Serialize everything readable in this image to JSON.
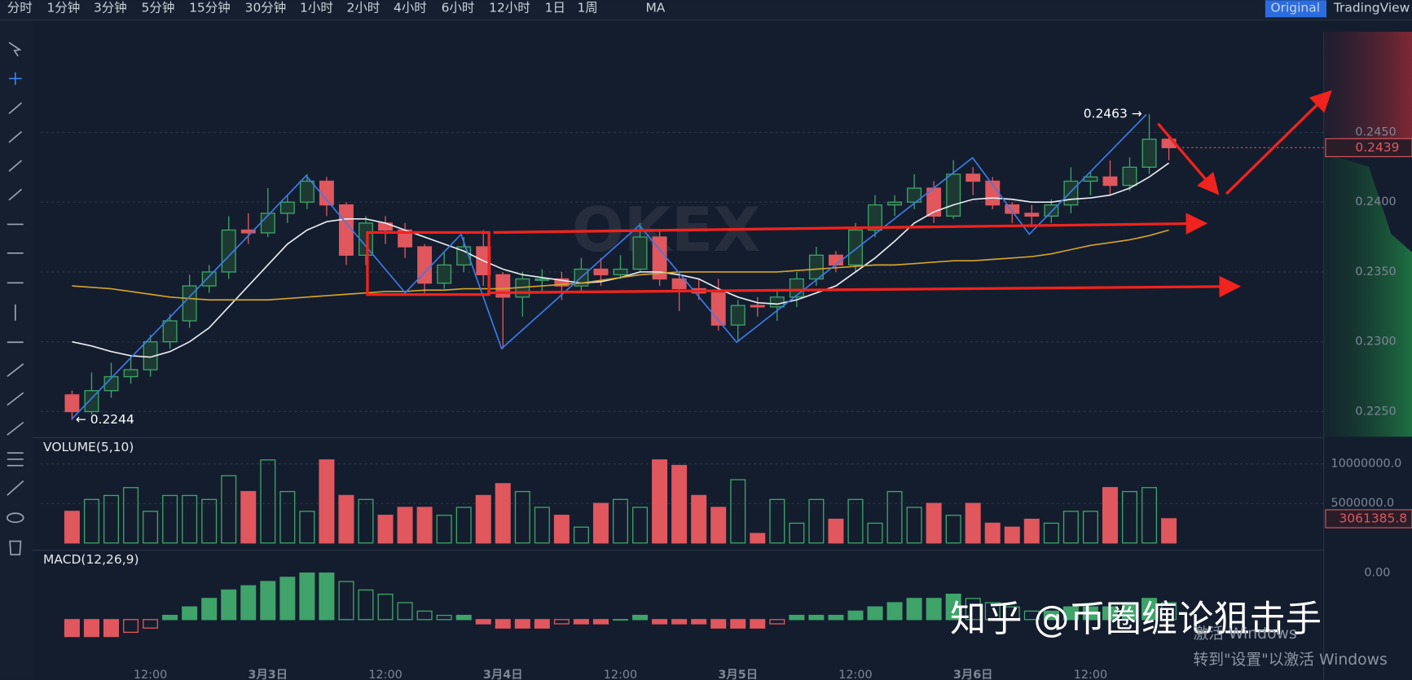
{
  "toolbar": {
    "timeframes": [
      "分时",
      "1分钟",
      "3分钟",
      "5分钟",
      "15分钟",
      "30分钟",
      "1小时",
      "2小时",
      "4小时",
      "6小时",
      "12小时",
      "1日",
      "1周"
    ],
    "active": 7,
    "indicator": "MA",
    "views": [
      "Original",
      "TradingView"
    ]
  },
  "watermarks": {
    "brand": "OKEX",
    "author": "知乎 @币圈缠论狙击手",
    "os_1": "激活 Windows",
    "os_2": "转到\"设置\"以激活 Windows"
  },
  "chart_data": [
    {
      "type": "candlestick",
      "up_color": "#3fa36a",
      "down_color": "#e0575e",
      "open": [
        0.2262,
        0.225,
        0.2265,
        0.2275,
        0.228,
        0.23,
        0.2315,
        0.234,
        0.235,
        0.238,
        0.2378,
        0.2392,
        0.24,
        0.2415,
        0.2398,
        0.2362,
        0.2385,
        0.238,
        0.2368,
        0.2342,
        0.2355,
        0.2368,
        0.2348,
        0.2332,
        0.2345,
        0.2345,
        0.234,
        0.2352,
        0.2348,
        0.2352,
        0.2375,
        0.2345,
        0.2338,
        0.2335,
        0.2312,
        0.2326,
        0.2325,
        0.2332,
        0.2345,
        0.2362,
        0.2355,
        0.238,
        0.2398,
        0.24,
        0.241,
        0.239,
        0.242,
        0.2415,
        0.2398,
        0.2392,
        0.239,
        0.2398,
        0.2415,
        0.2418,
        0.2412,
        0.2425,
        0.2445
      ],
      "high": [
        0.2265,
        0.2278,
        0.2285,
        0.229,
        0.2305,
        0.232,
        0.2348,
        0.2355,
        0.239,
        0.2392,
        0.241,
        0.2405,
        0.242,
        0.2418,
        0.24,
        0.239,
        0.239,
        0.2385,
        0.237,
        0.2365,
        0.2375,
        0.238,
        0.235,
        0.235,
        0.2352,
        0.235,
        0.236,
        0.236,
        0.2362,
        0.2385,
        0.238,
        0.235,
        0.2345,
        0.2345,
        0.233,
        0.2332,
        0.2338,
        0.235,
        0.2368,
        0.2365,
        0.2385,
        0.2405,
        0.2405,
        0.242,
        0.2415,
        0.243,
        0.2425,
        0.2418,
        0.24,
        0.2398,
        0.2402,
        0.2425,
        0.2422,
        0.243,
        0.2432,
        0.2463,
        0.2448
      ],
      "low": [
        0.2244,
        0.2248,
        0.226,
        0.227,
        0.2275,
        0.2295,
        0.231,
        0.2335,
        0.2345,
        0.237,
        0.2375,
        0.2385,
        0.2395,
        0.239,
        0.2355,
        0.2355,
        0.237,
        0.236,
        0.2335,
        0.2338,
        0.235,
        0.234,
        0.2295,
        0.2318,
        0.2335,
        0.233,
        0.2335,
        0.234,
        0.2345,
        0.235,
        0.234,
        0.2322,
        0.233,
        0.2308,
        0.23,
        0.2318,
        0.2315,
        0.2325,
        0.234,
        0.235,
        0.235,
        0.2375,
        0.239,
        0.2395,
        0.2385,
        0.2388,
        0.2405,
        0.2395,
        0.2385,
        0.2382,
        0.2385,
        0.2392,
        0.2405,
        0.2405,
        0.2408,
        0.242,
        0.243
      ],
      "close": [
        0.225,
        0.2265,
        0.2275,
        0.228,
        0.23,
        0.2315,
        0.234,
        0.235,
        0.238,
        0.2378,
        0.2392,
        0.24,
        0.2415,
        0.2398,
        0.2362,
        0.2385,
        0.238,
        0.2368,
        0.2342,
        0.2355,
        0.2368,
        0.2348,
        0.2332,
        0.2345,
        0.2345,
        0.234,
        0.2352,
        0.2348,
        0.2352,
        0.2375,
        0.2345,
        0.2338,
        0.2335,
        0.2312,
        0.2326,
        0.2325,
        0.2332,
        0.2345,
        0.2362,
        0.2355,
        0.238,
        0.2398,
        0.24,
        0.241,
        0.239,
        0.242,
        0.2415,
        0.2398,
        0.2392,
        0.239,
        0.2398,
        0.2415,
        0.2418,
        0.2412,
        0.2425,
        0.2445,
        0.2439
      ],
      "series": [
        {
          "color": "#e8ecf2",
          "values": [
            0.23,
            0.2297,
            0.2293,
            0.229,
            0.2289,
            0.2293,
            0.23,
            0.231,
            0.2325,
            0.234,
            0.2355,
            0.237,
            0.238,
            0.2386,
            0.2388,
            0.2388,
            0.2385,
            0.238,
            0.2375,
            0.237,
            0.2365,
            0.2358,
            0.2352,
            0.2348,
            0.2346,
            0.2344,
            0.2342,
            0.2343,
            0.2346,
            0.235,
            0.235,
            0.2348,
            0.2345,
            0.2338,
            0.2332,
            0.2328,
            0.2327,
            0.233,
            0.2335,
            0.234,
            0.235,
            0.236,
            0.2372,
            0.2385,
            0.2393,
            0.2398,
            0.2402,
            0.2403,
            0.2402,
            0.24,
            0.24,
            0.2402,
            0.2403,
            0.2405,
            0.241,
            0.2418,
            0.2428
          ]
        },
        {
          "color": "#d4a32c",
          "values": [
            0.234,
            0.2339,
            0.2338,
            0.2336,
            0.2334,
            0.2332,
            0.2331,
            0.233,
            0.233,
            0.233,
            0.233,
            0.2331,
            0.2332,
            0.2333,
            0.2334,
            0.2335,
            0.2336,
            0.2336,
            0.2337,
            0.2337,
            0.2338,
            0.2338,
            0.2338,
            0.2339,
            0.234,
            0.2341,
            0.2342,
            0.2344,
            0.2346,
            0.2348,
            0.2349,
            0.235,
            0.235,
            0.235,
            0.235,
            0.235,
            0.235,
            0.2351,
            0.2352,
            0.2353,
            0.2354,
            0.2355,
            0.2355,
            0.2356,
            0.2357,
            0.2358,
            0.2358,
            0.2359,
            0.236,
            0.2361,
            0.2363,
            0.2366,
            0.2369,
            0.2371,
            0.2373,
            0.2376,
            0.238
          ]
        }
      ],
      "ylim": [
        0.2232,
        0.2522
      ],
      "yticks": [
        {
          "value": 0.225,
          "label": "0.2250"
        },
        {
          "value": 0.23,
          "label": "0.2300"
        },
        {
          "value": 0.235,
          "label": "0.2350"
        },
        {
          "value": 0.24,
          "label": "0.2400"
        },
        {
          "value": 0.245,
          "label": "0.2450"
        }
      ],
      "annotations": [
        {
          "text": "0.2463 →",
          "index": 55,
          "value": 0.2463
        },
        {
          "text": "← 0.2244",
          "index": 0,
          "value": 0.2244
        }
      ],
      "grid": true
    },
    {
      "type": "bar",
      "title": "VOLUME(5,10)",
      "values": [
        4000000,
        5500000,
        6000000,
        7000000,
        4000000,
        6000000,
        6000000,
        5500000,
        8500000,
        6500000,
        10500000,
        6500000,
        4000000,
        10500000,
        6000000,
        5500000,
        3500000,
        4500000,
        4500000,
        3500000,
        4500000,
        6000000,
        7500000,
        6500000,
        4500000,
        3500000,
        2000000,
        5000000,
        5500000,
        4500000,
        10500000,
        9800000,
        6000000,
        4500000,
        8000000,
        1200000,
        5500000,
        2500000,
        5500000,
        3000000,
        5500000,
        2500000,
        6500000,
        4500000,
        5000000,
        3500000,
        5000000,
        2500000,
        2000000,
        3000000,
        2500000,
        4000000,
        4000000,
        7000000,
        6500000,
        7000000,
        3061385.8
      ],
      "ylim": [
        0,
        13200000
      ],
      "yticks": [
        {
          "value": 10000000,
          "label": "10000000.0"
        },
        {
          "value": 5000000,
          "label": "5000000.0"
        }
      ],
      "grid": true
    },
    {
      "type": "bar",
      "title": "MACD(12,26,9)",
      "up_color": "#3fa36a",
      "down_color": "#e0575e",
      "categories": [
        null,
        null,
        null,
        null,
        "12:00",
        null,
        null,
        null,
        null,
        null,
        "3月3日",
        null,
        null,
        null,
        null,
        null,
        "12:00",
        null,
        null,
        null,
        null,
        null,
        "3月4日",
        null,
        null,
        null,
        null,
        null,
        "12:00",
        null,
        null,
        null,
        null,
        null,
        "3月5日",
        null,
        null,
        null,
        null,
        null,
        "12:00",
        null,
        null,
        null,
        null,
        null,
        "3月6日",
        null,
        null,
        null,
        null,
        null,
        "12:00",
        null,
        null,
        null,
        null
      ],
      "values": [
        -0.0004,
        -0.0004,
        -0.0004,
        -0.0003,
        -0.0002,
        0.0001,
        0.0003,
        0.0005,
        0.0007,
        0.0008,
        0.0009,
        0.001,
        0.0011,
        0.0011,
        0.0009,
        0.0007,
        0.0006,
        0.0004,
        0.0002,
        0.0001,
        0.0001,
        -0.0001,
        -0.0002,
        -0.0002,
        -0.0002,
        -0.0001,
        -0.0001,
        -0.0001,
        0,
        0.0001,
        -0.0001,
        -0.0001,
        -0.0001,
        -0.0002,
        -0.0002,
        -0.0002,
        -0.0001,
        0.0001,
        0.0001,
        0.0001,
        0.0002,
        0.0003,
        0.0004,
        0.0005,
        0.0005,
        0.0006,
        0.0005,
        0.0004,
        0.0003,
        0.0002,
        0.0002,
        0.0003,
        0.0003,
        0.0003,
        0.0004,
        0.0005,
        0.0004
      ],
      "ylim": [
        -0.00121,
        0.00162
      ],
      "yticks": [
        {
          "value": 0.0011,
          "label": "0.00"
        }
      ]
    }
  ]
}
